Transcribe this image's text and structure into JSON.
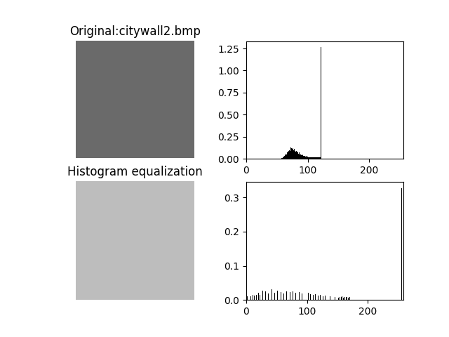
{
  "images": [
    {
      "title": "Original:citywall2.bmp"
    },
    {
      "title": "Histogram equalization"
    }
  ],
  "chart_data": [
    {
      "type": "bar",
      "color": "#000000",
      "x": [
        58,
        59,
        60,
        61,
        62,
        63,
        64,
        65,
        66,
        67,
        68,
        69,
        70,
        71,
        72,
        73,
        74,
        75,
        76,
        77,
        78,
        79,
        80,
        81,
        82,
        83,
        84,
        85,
        86,
        87,
        88,
        89,
        90,
        91,
        92,
        93,
        94,
        95,
        96,
        97,
        98,
        99,
        100,
        101,
        102,
        103,
        104,
        105,
        106,
        107,
        108,
        109,
        110,
        111,
        112,
        113,
        114,
        115,
        116,
        117,
        118,
        119,
        120,
        121,
        122
      ],
      "values": [
        0.005,
        0.01,
        0.02,
        0.025,
        0.03,
        0.04,
        0.05,
        0.06,
        0.05,
        0.07,
        0.08,
        0.09,
        0.1,
        0.09,
        0.11,
        0.13,
        0.12,
        0.11,
        0.12,
        0.1,
        0.11,
        0.09,
        0.1,
        0.08,
        0.09,
        0.07,
        0.08,
        0.06,
        0.07,
        0.05,
        0.06,
        0.05,
        0.04,
        0.05,
        0.04,
        0.035,
        0.03,
        0.035,
        0.03,
        0.025,
        0.03,
        0.02,
        0.025,
        0.02,
        0.015,
        0.02,
        0.015,
        0.018,
        0.015,
        0.02,
        0.015,
        0.018,
        0.016,
        0.02,
        0.015,
        0.018,
        0.016,
        0.02,
        0.015,
        0.018,
        0.016,
        0.02,
        0.018,
        0.02,
        1.27
      ],
      "xlim": [
        0,
        255
      ],
      "ylim": [
        0,
        1.33
      ],
      "xticks": [
        0,
        100,
        200
      ],
      "yticks": [
        {
          "value": 0,
          "label": "0.00"
        },
        {
          "value": 0.25,
          "label": "0.25"
        },
        {
          "value": 0.5,
          "label": "0.50"
        },
        {
          "value": 0.75,
          "label": "0.75"
        },
        {
          "value": 1.0,
          "label": "1.00"
        },
        {
          "value": 1.25,
          "label": "1.25"
        }
      ]
    },
    {
      "type": "bar",
      "color": "#000000",
      "x": [
        2,
        5,
        8,
        11,
        14,
        17,
        20,
        23,
        27,
        32,
        37,
        42,
        47,
        52,
        57,
        62,
        67,
        72,
        77,
        82,
        87,
        92,
        97,
        102,
        106,
        110,
        114,
        118,
        122,
        126,
        130,
        134,
        138,
        142,
        146,
        150,
        152,
        154,
        156,
        158,
        160,
        162,
        164,
        166,
        168,
        170,
        255
      ],
      "values": [
        0.01,
        0.012,
        0.01,
        0.015,
        0.012,
        0.015,
        0.02,
        0.015,
        0.028,
        0.025,
        0.018,
        0.032,
        0.02,
        0.028,
        0.022,
        0.018,
        0.026,
        0.022,
        0.025,
        0.02,
        0.024,
        0.018,
        0.022,
        0.02,
        0.016,
        0.015,
        0.017,
        0.012,
        0.014,
        0.01,
        0.012,
        0.009,
        0.01,
        0.008,
        0.009,
        0.008,
        0.007,
        0.009,
        0.008,
        0.01,
        0.007,
        0.009,
        0.008,
        0.009,
        0.007,
        0.008,
        0.327
      ],
      "xlim": [
        0,
        258
      ],
      "ylim": [
        0,
        0.345
      ],
      "xticks": [
        0,
        100,
        200
      ],
      "yticks": [
        {
          "value": 0,
          "label": "0.0"
        },
        {
          "value": 0.1,
          "label": "0.1"
        },
        {
          "value": 0.2,
          "label": "0.2"
        },
        {
          "value": 0.3,
          "label": "0.3"
        }
      ]
    }
  ]
}
